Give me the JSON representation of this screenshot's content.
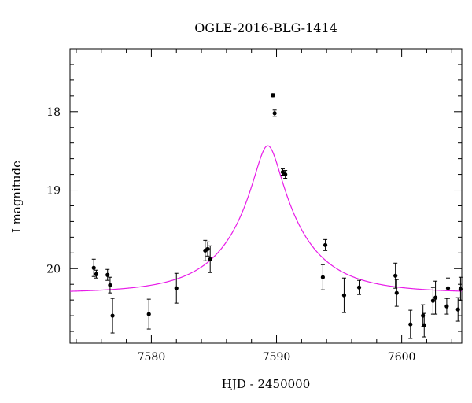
{
  "chart_data": {
    "type": "scatter",
    "title": "OGLE-2016-BLG-1414",
    "xlabel": "HJD - 2450000",
    "ylabel": "I magnitude",
    "xlim": [
      7573.5,
      7604.8
    ],
    "ylim": [
      20.95,
      17.2
    ],
    "y_inverted": true,
    "x_major_ticks": [
      7580,
      7590,
      7600
    ],
    "x_tick_labels": [
      "7580",
      "7590",
      "7600"
    ],
    "y_major_ticks": [
      18,
      19,
      20
    ],
    "y_tick_labels": [
      "18",
      "19",
      "20"
    ],
    "grid": false,
    "series": [
      {
        "kind": "points_with_errorbars",
        "color": "#000000",
        "points": [
          {
            "x": 7575.4,
            "y": 19.99,
            "err": 0.11
          },
          {
            "x": 7575.6,
            "y": 20.07,
            "err": 0.05
          },
          {
            "x": 7576.5,
            "y": 20.08,
            "err": 0.07
          },
          {
            "x": 7576.7,
            "y": 20.21,
            "err": 0.1
          },
          {
            "x": 7576.9,
            "y": 20.6,
            "err": 0.22
          },
          {
            "x": 7579.8,
            "y": 20.58,
            "err": 0.19
          },
          {
            "x": 7582.0,
            "y": 20.25,
            "err": 0.19
          },
          {
            "x": 7584.3,
            "y": 19.77,
            "err": 0.13
          },
          {
            "x": 7584.5,
            "y": 19.75,
            "err": 0.09
          },
          {
            "x": 7584.7,
            "y": 19.88,
            "err": 0.17
          },
          {
            "x": 7589.7,
            "y": 17.79,
            "err": 0.02
          },
          {
            "x": 7589.85,
            "y": 18.02,
            "err": 0.04
          },
          {
            "x": 7590.5,
            "y": 18.77,
            "err": 0.04
          },
          {
            "x": 7590.7,
            "y": 18.8,
            "err": 0.05
          },
          {
            "x": 7593.7,
            "y": 20.11,
            "err": 0.16
          },
          {
            "x": 7593.9,
            "y": 19.7,
            "err": 0.07
          },
          {
            "x": 7595.4,
            "y": 20.34,
            "err": 0.22
          },
          {
            "x": 7596.6,
            "y": 20.24,
            "err": 0.09
          },
          {
            "x": 7599.5,
            "y": 20.09,
            "err": 0.16
          },
          {
            "x": 7599.6,
            "y": 20.31,
            "err": 0.17
          },
          {
            "x": 7600.7,
            "y": 20.71,
            "err": 0.18
          },
          {
            "x": 7601.7,
            "y": 20.6,
            "err": 0.14
          },
          {
            "x": 7601.8,
            "y": 20.72,
            "err": 0.15
          },
          {
            "x": 7602.5,
            "y": 20.41,
            "err": 0.17
          },
          {
            "x": 7602.7,
            "y": 20.37,
            "err": 0.21
          },
          {
            "x": 7603.6,
            "y": 20.48,
            "err": 0.1
          },
          {
            "x": 7603.7,
            "y": 20.25,
            "err": 0.13
          },
          {
            "x": 7604.5,
            "y": 20.52,
            "err": 0.15
          },
          {
            "x": 7604.7,
            "y": 20.26,
            "err": 0.15
          }
        ]
      },
      {
        "kind": "model_curve",
        "color": "#e81be8",
        "model": {
          "t0": 7589.3,
          "tE": 5.5,
          "u0": 0.18,
          "base_mag": 20.31
        }
      }
    ]
  }
}
